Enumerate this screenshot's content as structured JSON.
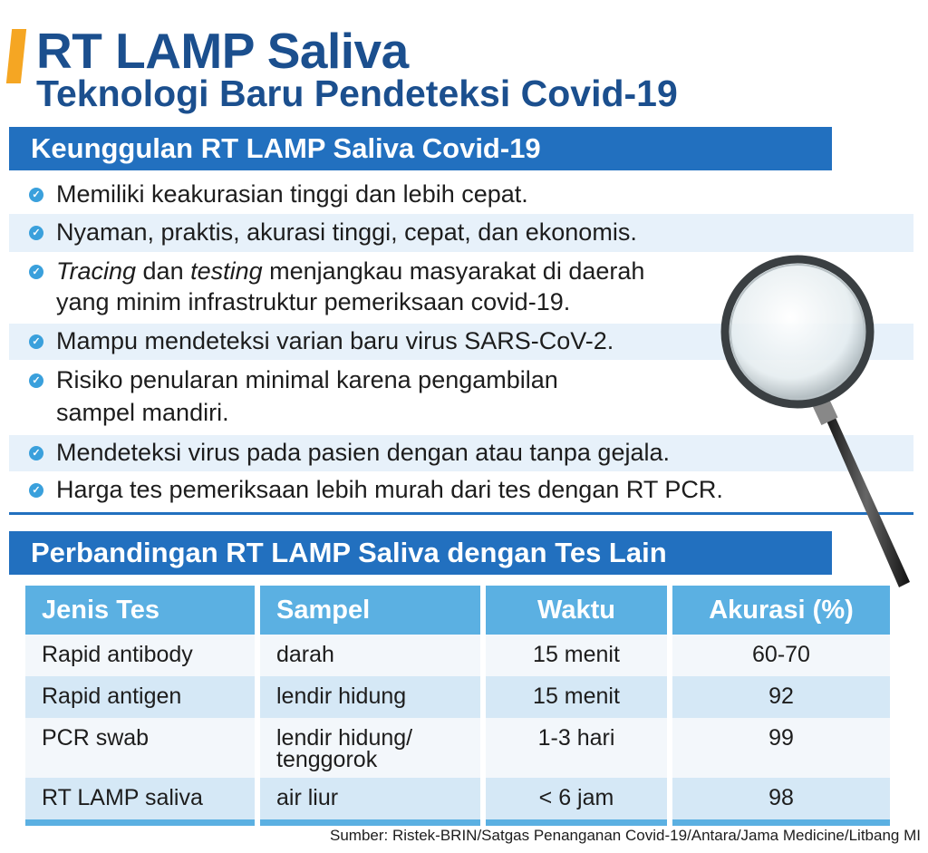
{
  "header": {
    "title": "RT LAMP Saliva",
    "subtitle": "Teknologi Baru Pendeteksi Covid-19",
    "accent_color": "#f5a623",
    "title_color": "#1b4f8e"
  },
  "advantages": {
    "heading": "Keunggulan RT LAMP Saliva Covid-19",
    "items": [
      {
        "lines": [
          "Memiliki keakurasian tinggi dan lebih cepat."
        ]
      },
      {
        "lines": [
          "Nyaman, praktis, akurasi tinggi, cepat, dan ekonomis."
        ]
      },
      {
        "italic1": "Tracing",
        "mid": " dan ",
        "italic2": "testing",
        "rest": " menjangkau masyarakat di daerah",
        "line2": "yang minim infrastruktur pemeriksaan covid-19."
      },
      {
        "lines": [
          "Mampu mendeteksi varian baru virus SARS-CoV-2."
        ]
      },
      {
        "lines": [
          "Risiko penularan minimal karena pengambilan",
          "sampel mandiri."
        ]
      },
      {
        "lines": [
          "Mendeteksi virus pada pasien dengan atau tanpa gejala."
        ]
      },
      {
        "lines": [
          "Harga tes pemeriksaan lebih murah dari tes dengan RT PCR."
        ]
      }
    ],
    "bullet_icon": "check-circle-icon"
  },
  "comparison": {
    "heading": "Perbandingan RT LAMP Saliva dengan Tes Lain",
    "columns": [
      "Jenis Tes",
      "Sampel",
      "Waktu",
      "Akurasi (%)"
    ],
    "rows": [
      [
        "Rapid antibody",
        "darah",
        "15 menit",
        "60-70"
      ],
      [
        "Rapid antigen",
        "lendir hidung",
        "15 menit",
        "92"
      ],
      [
        "PCR swab",
        "lendir hidung/ tenggorok",
        "1-3 hari",
        "99"
      ],
      [
        "RT LAMP saliva",
        "air liur",
        "< 6 jam",
        "98"
      ]
    ]
  },
  "source": "Sumber: Ristek-BRIN/Satgas Penanganan Covid-19/Antara/Jama Medicine/Litbang MI",
  "decor": {
    "illustration": "magnifying-glass-icon",
    "bar_color": "#2270bf",
    "table_header_color": "#5bb0e2"
  }
}
